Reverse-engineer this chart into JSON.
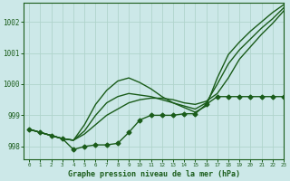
{
  "background_color": "#cce8e8",
  "grid_color": "#b0d4cc",
  "line_color": "#1a5c1a",
  "title": "Graphe pression niveau de la mer (hPa)",
  "xlim": [
    -0.5,
    23
  ],
  "ylim": [
    997.6,
    1002.6
  ],
  "yticks": [
    998,
    999,
    1000,
    1001,
    1002
  ],
  "xticks": [
    0,
    1,
    2,
    3,
    4,
    5,
    6,
    7,
    8,
    9,
    10,
    11,
    12,
    13,
    14,
    15,
    16,
    17,
    18,
    19,
    20,
    21,
    22,
    23
  ],
  "series": [
    {
      "x": [
        0,
        1,
        2,
        3,
        4,
        5,
        6,
        7,
        8,
        9,
        10,
        11,
        12,
        13,
        14,
        15,
        16,
        17,
        18,
        19,
        20,
        21,
        22,
        23
      ],
      "y": [
        998.55,
        998.45,
        998.35,
        998.25,
        997.9,
        998.0,
        998.05,
        998.05,
        998.1,
        998.45,
        998.85,
        999.0,
        999.0,
        999.0,
        999.05,
        999.05,
        999.35,
        999.6,
        999.6,
        999.6,
        999.6,
        999.6,
        999.6,
        999.6
      ],
      "marker": "D",
      "markersize": 2.5,
      "linewidth": 1.0,
      "zorder": 4
    },
    {
      "x": [
        0,
        1,
        2,
        3,
        4,
        5,
        6,
        7,
        8,
        9,
        10,
        11,
        12,
        13,
        14,
        15,
        16,
        17,
        18,
        19,
        20,
        21,
        22,
        23
      ],
      "y": [
        998.55,
        998.45,
        998.35,
        998.25,
        998.2,
        998.4,
        998.7,
        999.0,
        999.2,
        999.4,
        999.5,
        999.55,
        999.55,
        999.5,
        999.4,
        999.35,
        999.45,
        999.7,
        1000.2,
        1000.8,
        1001.2,
        1001.6,
        1001.95,
        1002.35
      ],
      "marker": null,
      "markersize": 0,
      "linewidth": 1.0,
      "zorder": 2
    },
    {
      "x": [
        0,
        1,
        2,
        3,
        4,
        5,
        6,
        7,
        8,
        9,
        10,
        11,
        12,
        13,
        14,
        15,
        16,
        17,
        18,
        19,
        20,
        21,
        22,
        23
      ],
      "y": [
        998.55,
        998.45,
        998.35,
        998.25,
        998.2,
        998.5,
        999.0,
        999.4,
        999.6,
        999.7,
        999.65,
        999.6,
        999.5,
        999.4,
        999.3,
        999.2,
        999.4,
        1000.0,
        1000.65,
        1001.1,
        1001.45,
        1001.8,
        1002.1,
        1002.45
      ],
      "marker": null,
      "markersize": 0,
      "linewidth": 1.0,
      "zorder": 2
    },
    {
      "x": [
        0,
        1,
        2,
        3,
        4,
        5,
        6,
        7,
        8,
        9,
        10,
        11,
        12,
        13,
        14,
        15,
        16,
        17,
        18,
        19,
        20,
        21,
        22,
        23
      ],
      "y": [
        998.55,
        998.45,
        998.35,
        998.25,
        998.2,
        998.7,
        999.35,
        999.8,
        1000.1,
        1000.2,
        1000.05,
        999.85,
        999.6,
        999.4,
        999.25,
        999.1,
        999.3,
        1000.2,
        1000.95,
        1001.35,
        1001.7,
        1002.0,
        1002.3,
        1002.55
      ],
      "marker": null,
      "markersize": 0,
      "linewidth": 1.0,
      "zorder": 2
    }
  ]
}
